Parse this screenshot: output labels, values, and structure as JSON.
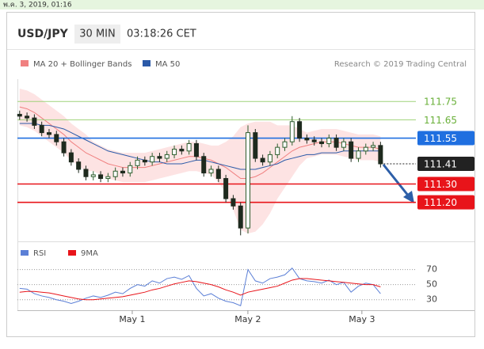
{
  "header": {
    "date": "พ.ค. 3, 2019, 01:16",
    "pair": "USD/JPY",
    "timeframe": "30 MIN",
    "time": "03:18:26 CET",
    "credit": "Research © 2019 Trading Central"
  },
  "chart_data": [
    {
      "type": "candlestick",
      "ylim": [
        111.0,
        111.82
      ],
      "xlim": [
        -0.3,
        53.8
      ],
      "xticks": [
        {
          "value": 15.29,
          "label": "May 1"
        },
        {
          "value": 30.99,
          "label": "May 2"
        },
        {
          "value": 46.47,
          "label": "May 3"
        }
      ],
      "up_color": "#2e5e2e",
      "down_color": "#1e2a1e",
      "open": [
        111.68,
        111.67,
        111.66,
        111.62,
        111.58,
        111.57,
        111.53,
        111.47,
        111.42,
        111.38,
        111.34,
        111.35,
        111.33,
        111.34,
        111.37,
        111.36,
        111.4,
        111.43,
        111.42,
        111.45,
        111.44,
        111.46,
        111.49,
        111.48,
        111.52,
        111.45,
        111.36,
        111.38,
        111.33,
        111.22,
        111.18,
        111.06,
        111.58,
        111.44,
        111.42,
        111.46,
        111.5,
        111.53,
        111.64,
        111.55,
        111.54,
        111.53,
        111.52,
        111.55,
        111.5,
        111.53,
        111.44,
        111.48,
        111.5,
        111.51
      ],
      "high": [
        111.7,
        111.69,
        111.68,
        111.64,
        111.6,
        111.59,
        111.55,
        111.49,
        111.44,
        111.4,
        111.37,
        111.37,
        111.36,
        111.39,
        111.39,
        111.42,
        111.45,
        111.45,
        111.47,
        111.47,
        111.48,
        111.51,
        111.51,
        111.54,
        111.54,
        111.47,
        111.4,
        111.4,
        111.35,
        111.24,
        111.2,
        111.62,
        111.6,
        111.46,
        111.48,
        111.52,
        111.55,
        111.67,
        111.66,
        111.57,
        111.56,
        111.55,
        111.57,
        111.57,
        111.55,
        111.55,
        111.5,
        111.52,
        111.53,
        111.53
      ],
      "low": [
        111.65,
        111.64,
        111.6,
        111.56,
        111.55,
        111.51,
        111.45,
        111.4,
        111.36,
        111.32,
        111.32,
        111.31,
        111.31,
        111.32,
        111.34,
        111.34,
        111.38,
        111.4,
        111.4,
        111.42,
        111.42,
        111.44,
        111.46,
        111.46,
        111.43,
        111.34,
        111.34,
        111.31,
        111.2,
        111.16,
        111.02,
        111.03,
        111.42,
        111.4,
        111.4,
        111.44,
        111.48,
        111.51,
        111.53,
        111.52,
        111.51,
        111.5,
        111.5,
        111.48,
        111.48,
        111.42,
        111.42,
        111.46,
        111.48,
        111.39
      ],
      "close": [
        111.67,
        111.66,
        111.62,
        111.58,
        111.57,
        111.53,
        111.47,
        111.42,
        111.38,
        111.34,
        111.35,
        111.33,
        111.34,
        111.37,
        111.36,
        111.4,
        111.43,
        111.42,
        111.45,
        111.44,
        111.46,
        111.49,
        111.48,
        111.52,
        111.45,
        111.36,
        111.38,
        111.33,
        111.22,
        111.18,
        111.06,
        111.58,
        111.44,
        111.42,
        111.46,
        111.5,
        111.53,
        111.64,
        111.55,
        111.54,
        111.53,
        111.52,
        111.55,
        111.5,
        111.53,
        111.44,
        111.48,
        111.5,
        111.51,
        111.41
      ],
      "bands": {
        "name": "MA 20 + Bollinger Bands",
        "color": "#f08080",
        "fill": "#fde3e3",
        "ma": [
          111.72,
          111.71,
          111.69,
          111.66,
          111.63,
          111.6,
          111.57,
          111.53,
          111.5,
          111.47,
          111.45,
          111.43,
          111.41,
          111.4,
          111.39,
          111.39,
          111.39,
          111.39,
          111.4,
          111.41,
          111.42,
          111.43,
          111.44,
          111.45,
          111.45,
          111.44,
          111.43,
          111.41,
          111.39,
          111.36,
          111.33,
          111.33,
          111.34,
          111.36,
          111.39,
          111.42,
          111.45,
          111.48,
          111.5,
          111.51,
          111.52,
          111.53,
          111.53,
          111.53,
          111.52,
          111.51,
          111.5,
          111.5,
          111.5,
          111.49
        ],
        "upper": [
          111.82,
          111.81,
          111.79,
          111.76,
          111.73,
          111.7,
          111.67,
          111.63,
          111.6,
          111.57,
          111.53,
          111.51,
          111.49,
          111.48,
          111.47,
          111.47,
          111.47,
          111.47,
          111.48,
          111.49,
          111.5,
          111.51,
          111.52,
          111.53,
          111.53,
          111.52,
          111.51,
          111.51,
          111.53,
          111.56,
          111.61,
          111.63,
          111.64,
          111.64,
          111.64,
          111.62,
          111.62,
          111.62,
          111.6,
          111.58,
          111.59,
          111.6,
          111.6,
          111.6,
          111.59,
          111.58,
          111.57,
          111.57,
          111.57,
          111.56
        ],
        "lower": [
          111.62,
          111.61,
          111.59,
          111.56,
          111.53,
          111.5,
          111.47,
          111.43,
          111.4,
          111.37,
          111.37,
          111.35,
          111.33,
          111.32,
          111.31,
          111.31,
          111.31,
          111.31,
          111.32,
          111.33,
          111.34,
          111.35,
          111.36,
          111.37,
          111.37,
          111.36,
          111.35,
          111.31,
          111.25,
          111.16,
          111.05,
          111.03,
          111.04,
          111.08,
          111.14,
          111.22,
          111.28,
          111.34,
          111.4,
          111.44,
          111.45,
          111.46,
          111.46,
          111.46,
          111.45,
          111.44,
          111.43,
          111.43,
          111.43,
          111.42
        ]
      },
      "series": [
        {
          "name": "MA 50",
          "color": "#2b5aa8",
          "values": [
            111.63,
            111.63,
            111.63,
            111.62,
            111.62,
            111.61,
            111.6,
            111.58,
            111.56,
            111.54,
            111.52,
            111.5,
            111.48,
            111.47,
            111.46,
            111.45,
            111.44,
            111.43,
            111.42,
            111.42,
            111.41,
            111.41,
            111.41,
            111.42,
            111.43,
            111.43,
            111.42,
            111.41,
            111.4,
            111.39,
            111.38,
            111.38,
            111.38,
            111.39,
            111.4,
            111.41,
            111.43,
            111.44,
            111.45,
            111.46,
            111.46,
            111.47,
            111.47,
            111.47,
            111.48,
            111.48,
            111.48,
            111.48,
            111.48,
            111.48
          ]
        }
      ],
      "levels": [
        {
          "value": 111.75,
          "label": "111.75",
          "color": "#9fd27a",
          "style": "solid",
          "box": false
        },
        {
          "value": 111.65,
          "label": "111.65",
          "color": "#9fd27a",
          "style": "solid",
          "box": false
        },
        {
          "value": 111.55,
          "label": "111.55",
          "color": "#1f6fe0",
          "style": "solid",
          "box": true
        },
        {
          "value": 111.41,
          "label": "111.41",
          "color": "#222222",
          "style": "dotted",
          "box": true
        },
        {
          "value": 111.3,
          "label": "111.30",
          "color": "#e8141a",
          "style": "solid",
          "box": true
        },
        {
          "value": 111.2,
          "label": "111.20",
          "color": "#e8141a",
          "style": "solid",
          "box": true
        }
      ]
    },
    {
      "type": "line",
      "ylim": [
        15,
        78
      ],
      "yticks": [
        70,
        50,
        30
      ],
      "grid": "dotted",
      "series": [
        {
          "name": "RSI",
          "color": "#5b7fd6",
          "values": [
            45,
            44,
            38,
            35,
            33,
            30,
            28,
            25,
            28,
            32,
            35,
            33,
            36,
            40,
            38,
            45,
            50,
            48,
            55,
            52,
            58,
            60,
            57,
            62,
            45,
            35,
            38,
            32,
            28,
            26,
            22,
            70,
            55,
            52,
            58,
            60,
            63,
            72,
            58,
            55,
            54,
            52,
            56,
            50,
            53,
            40,
            48,
            52,
            50,
            38
          ]
        },
        {
          "name": "9MA",
          "color": "#e8141a",
          "values": [
            40,
            41,
            41,
            40,
            39,
            37,
            35,
            33,
            31,
            30,
            30,
            31,
            32,
            33,
            34,
            36,
            38,
            40,
            43,
            45,
            48,
            51,
            53,
            55,
            54,
            52,
            50,
            47,
            43,
            40,
            36,
            40,
            42,
            44,
            46,
            48,
            52,
            56,
            58,
            58,
            57,
            56,
            55,
            54,
            53,
            52,
            51,
            50,
            50,
            47
          ]
        }
      ]
    }
  ]
}
